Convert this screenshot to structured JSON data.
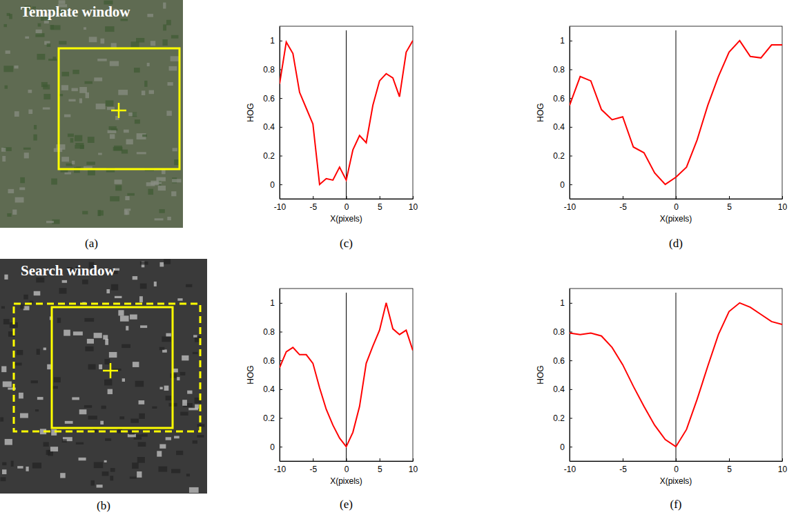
{
  "chart_data": [
    {
      "type": "image",
      "title": "Template window",
      "caption": "(a)"
    },
    {
      "type": "image",
      "title": "Search window",
      "caption": "(b)"
    },
    {
      "type": "line",
      "caption": "(c)",
      "x_label": "X(pixels)",
      "y_label": "HOG",
      "x": [
        -10,
        -9,
        -8,
        -7,
        -6,
        -5,
        -4,
        -3,
        -2,
        -1,
        0,
        1,
        2,
        3,
        4,
        5,
        6,
        7,
        8,
        9,
        10
      ],
      "values": [
        0.7,
        0.99,
        0.91,
        0.64,
        0.53,
        0.42,
        0.0,
        0.04,
        0.03,
        0.12,
        0.03,
        0.24,
        0.34,
        0.29,
        0.55,
        0.72,
        0.77,
        0.74,
        0.61,
        0.92,
        1.0
      ],
      "color": "#ff0000",
      "vline": 0,
      "xlim": [
        -10,
        10
      ],
      "xticks": [
        -10,
        -5,
        0,
        5,
        10
      ],
      "ylim": [
        -0.1,
        1.1
      ],
      "yticks": [
        0,
        0.2,
        0.4,
        0.6,
        0.8,
        1
      ]
    },
    {
      "type": "line",
      "caption": "(d)",
      "x_label": "X(pixels)",
      "y_label": "HOG",
      "x": [
        -10,
        -9,
        -8,
        -7,
        -6,
        -5,
        -4,
        -3,
        -2,
        -1,
        0,
        1,
        2,
        3,
        4,
        5,
        6,
        7,
        8,
        9,
        10
      ],
      "values": [
        0.55,
        0.75,
        0.72,
        0.52,
        0.45,
        0.47,
        0.26,
        0.22,
        0.08,
        0.0,
        0.05,
        0.12,
        0.31,
        0.55,
        0.75,
        0.92,
        1.0,
        0.89,
        0.88,
        0.97,
        0.97
      ],
      "color": "#ff0000",
      "vline": 0,
      "xlim": [
        -10,
        10
      ],
      "xticks": [
        -10,
        -5,
        0,
        5,
        10
      ],
      "ylim": [
        -0.1,
        1.1
      ],
      "yticks": [
        0,
        0.2,
        0.4,
        0.6,
        0.8,
        1
      ]
    },
    {
      "type": "line",
      "caption": "(e)",
      "x_label": "X(pixels)",
      "y_label": "HOG",
      "x": [
        -10,
        -9,
        -8,
        -7,
        -6,
        -5,
        -4,
        -3,
        -2,
        -1,
        0,
        1,
        2,
        3,
        4,
        5,
        6,
        7,
        8,
        9,
        10
      ],
      "values": [
        0.55,
        0.66,
        0.69,
        0.64,
        0.64,
        0.58,
        0.41,
        0.26,
        0.15,
        0.06,
        0.0,
        0.1,
        0.28,
        0.58,
        0.7,
        0.81,
        1.0,
        0.82,
        0.78,
        0.81,
        0.67
      ],
      "color": "#ff0000",
      "vline": 0,
      "xlim": [
        -10,
        10
      ],
      "xticks": [
        -10,
        -5,
        0,
        5,
        10
      ],
      "ylim": [
        -0.1,
        1.1
      ],
      "yticks": [
        0,
        0.2,
        0.4,
        0.6,
        0.8,
        1
      ]
    },
    {
      "type": "line",
      "caption": "(f)",
      "x_label": "X(pixels)",
      "y_label": "HOG",
      "x": [
        -10,
        -9,
        -8,
        -7,
        -6,
        -5,
        -4,
        -3,
        -2,
        -1,
        0,
        1,
        2,
        3,
        4,
        5,
        6,
        7,
        8,
        9,
        10
      ],
      "values": [
        0.79,
        0.78,
        0.79,
        0.77,
        0.69,
        0.57,
        0.42,
        0.28,
        0.15,
        0.05,
        0.0,
        0.12,
        0.33,
        0.56,
        0.78,
        0.94,
        1.0,
        0.97,
        0.92,
        0.87,
        0.85
      ],
      "color": "#ff0000",
      "vline": 0,
      "xlim": [
        -10,
        10
      ],
      "xticks": [
        -10,
        -5,
        0,
        5,
        10
      ],
      "ylim": [
        -0.1,
        1.1
      ],
      "yticks": [
        0,
        0.2,
        0.4,
        0.6,
        0.8,
        1
      ]
    }
  ]
}
